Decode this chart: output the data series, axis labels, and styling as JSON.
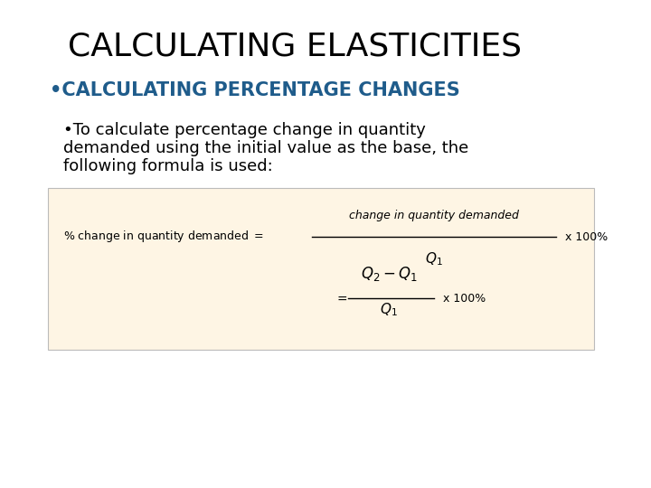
{
  "title": "CALCULATING ELASTICITIES",
  "subtitle": "•CALCULATING PERCENTAGE CHANGES",
  "subtitle_color": "#1f5c8b",
  "body_bullet": "•To calculate percentage change in quantity",
  "body_line2": "demanded using the initial value as the base, the",
  "body_line3": "following formula is used:",
  "box_bg_color": "#fef5e4",
  "box_edge_color": "#bbbbbb",
  "background_color": "#ffffff",
  "title_fontsize": 26,
  "subtitle_fontsize": 15,
  "body_fontsize": 13,
  "formula_fontsize": 9,
  "formula_math_fontsize": 10
}
